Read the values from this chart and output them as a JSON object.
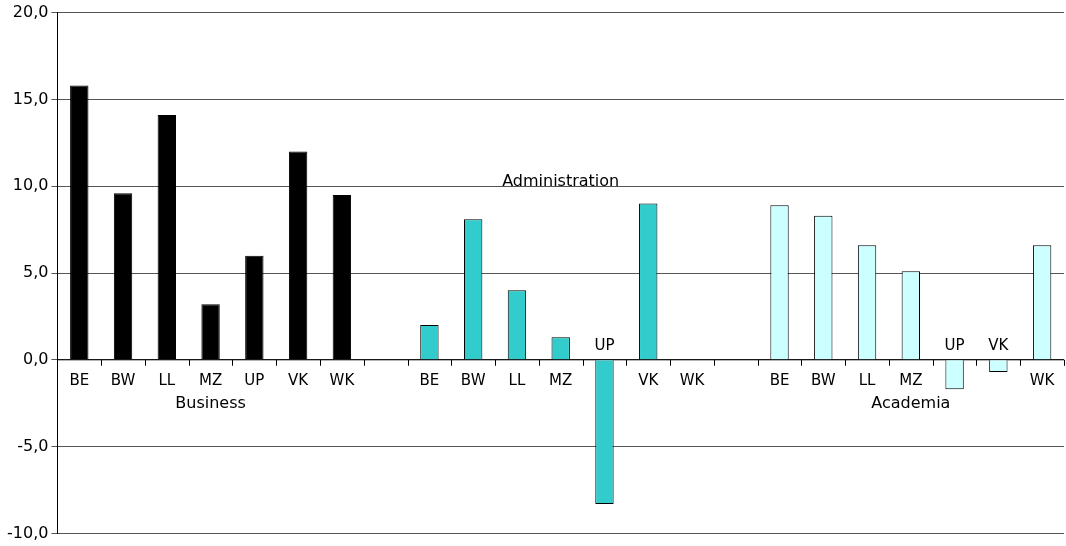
{
  "chart_data": {
    "type": "bar",
    "categories": [
      "BE",
      "BW",
      "LL",
      "MZ",
      "UP",
      "VK",
      "WK",
      null,
      "BE",
      "BW",
      "LL",
      "MZ",
      "UP",
      "VK",
      "WK",
      null,
      "BE",
      "BW",
      "LL",
      "MZ",
      "UP",
      "VK",
      "WK"
    ],
    "series": [
      {
        "name": "Business",
        "color": "#000000",
        "values": [
          15.8,
          9.6,
          14.1,
          3.2,
          6.0,
          12.0,
          9.5,
          null,
          null,
          null,
          null,
          null,
          null,
          null,
          null,
          null,
          null,
          null,
          null,
          null,
          null,
          null,
          null
        ]
      },
      {
        "name": "Administration",
        "color": "#33cccc",
        "values": [
          null,
          null,
          null,
          null,
          null,
          null,
          null,
          null,
          2.0,
          8.1,
          4.0,
          1.3,
          -8.3,
          9.0,
          null,
          null,
          null,
          null,
          null,
          null,
          null,
          null,
          null
        ]
      },
      {
        "name": "Academia",
        "color": "#ccffff",
        "values": [
          null,
          null,
          null,
          null,
          null,
          null,
          null,
          null,
          null,
          null,
          null,
          null,
          null,
          null,
          null,
          null,
          8.9,
          8.3,
          6.6,
          5.1,
          -1.7,
          -0.7,
          6.6
        ]
      }
    ],
    "ylim": [
      -10,
      20
    ],
    "yticks": [
      {
        "value": -10,
        "label": "-10,0"
      },
      {
        "value": -5,
        "label": "-5,0"
      },
      {
        "value": 0,
        "label": "0,0"
      },
      {
        "value": 5,
        "label": "5,0"
      },
      {
        "value": 10,
        "label": "10,0"
      },
      {
        "value": 15,
        "label": "15,0"
      },
      {
        "value": 20,
        "label": "20,0"
      }
    ],
    "grid": "y",
    "legend": false
  }
}
